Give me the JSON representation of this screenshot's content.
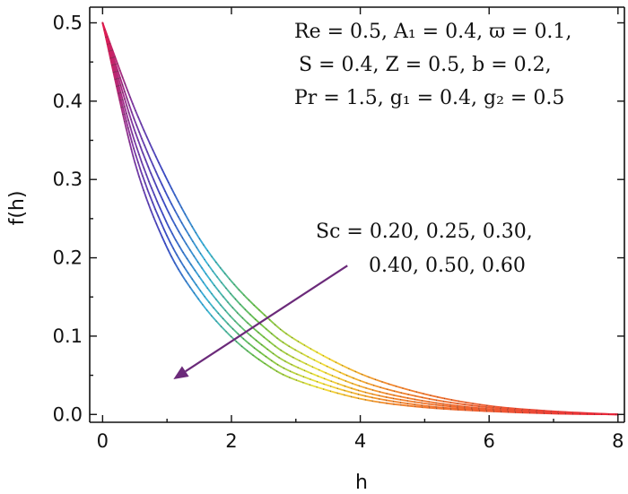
{
  "chart_data": {
    "type": "line",
    "title": "",
    "xlabel": "h",
    "ylabel": "f(h)",
    "xlim": [
      -0.2,
      8.1
    ],
    "ylim": [
      -0.01,
      0.52
    ],
    "xticks": [
      "0",
      "2",
      "4",
      "6",
      "8"
    ],
    "yticks": [
      "0.0",
      "0.1",
      "0.2",
      "0.3",
      "0.4",
      "0.5"
    ],
    "legend": "none",
    "grid": false,
    "colormap": [
      "#e6194b",
      "#7e3aa6",
      "#3b4bc8",
      "#37b3d9",
      "#6cc24a",
      "#f2e23a",
      "#f48a2c",
      "#e8233b"
    ],
    "series": [
      {
        "sc": 0.2,
        "x": [
          0,
          0.5,
          1,
          1.5,
          2,
          2.5,
          3,
          4,
          5,
          6,
          7,
          8
        ],
        "y": [
          0.5,
          0.39,
          0.3,
          0.225,
          0.17,
          0.128,
          0.095,
          0.052,
          0.026,
          0.011,
          0.004,
          0.0
        ]
      },
      {
        "sc": 0.25,
        "x": [
          0,
          0.5,
          1,
          1.5,
          2,
          2.5,
          3,
          4,
          5,
          6,
          7,
          8
        ],
        "y": [
          0.5,
          0.375,
          0.28,
          0.208,
          0.153,
          0.112,
          0.082,
          0.043,
          0.021,
          0.009,
          0.003,
          0.0
        ]
      },
      {
        "sc": 0.3,
        "x": [
          0,
          0.5,
          1,
          1.5,
          2,
          2.5,
          3,
          4,
          5,
          6,
          7,
          8
        ],
        "y": [
          0.5,
          0.362,
          0.262,
          0.192,
          0.138,
          0.099,
          0.071,
          0.036,
          0.017,
          0.007,
          0.0025,
          0.0
        ]
      },
      {
        "sc": 0.4,
        "x": [
          0,
          0.5,
          1,
          1.5,
          2,
          2.5,
          3,
          4,
          5,
          6,
          7,
          8
        ],
        "y": [
          0.5,
          0.348,
          0.244,
          0.176,
          0.124,
          0.087,
          0.061,
          0.03,
          0.014,
          0.006,
          0.002,
          0.0
        ]
      },
      {
        "sc": 0.5,
        "x": [
          0,
          0.5,
          1,
          1.5,
          2,
          2.5,
          3,
          4,
          5,
          6,
          7,
          8
        ],
        "y": [
          0.5,
          0.335,
          0.228,
          0.16,
          0.111,
          0.076,
          0.052,
          0.025,
          0.011,
          0.005,
          0.0015,
          0.0
        ]
      },
      {
        "sc": 0.6,
        "x": [
          0,
          0.5,
          1,
          1.5,
          2,
          2.5,
          3,
          4,
          5,
          6,
          7,
          8
        ],
        "y": [
          0.5,
          0.322,
          0.213,
          0.146,
          0.099,
          0.066,
          0.044,
          0.02,
          0.009,
          0.004,
          0.001,
          0.0
        ]
      }
    ],
    "annotations": {
      "params_line1": "Re = 0.5, A₁ = 0.4, ϖ = 0.1,",
      "params_line2": "S = 0.4, Z = 0.5, b = 0.2,",
      "params_line3": "Pr = 1.5, g₁ = 0.4, g₂ = 0.5",
      "sc_line1": "Sc = 0.20, 0.25, 0.30,",
      "sc_line2": "0.40, 0.50, 0.60",
      "arrow": {
        "from": [
          3.8,
          0.19
        ],
        "to": [
          1.1,
          0.045
        ],
        "color": "#6b2a7a"
      }
    }
  }
}
